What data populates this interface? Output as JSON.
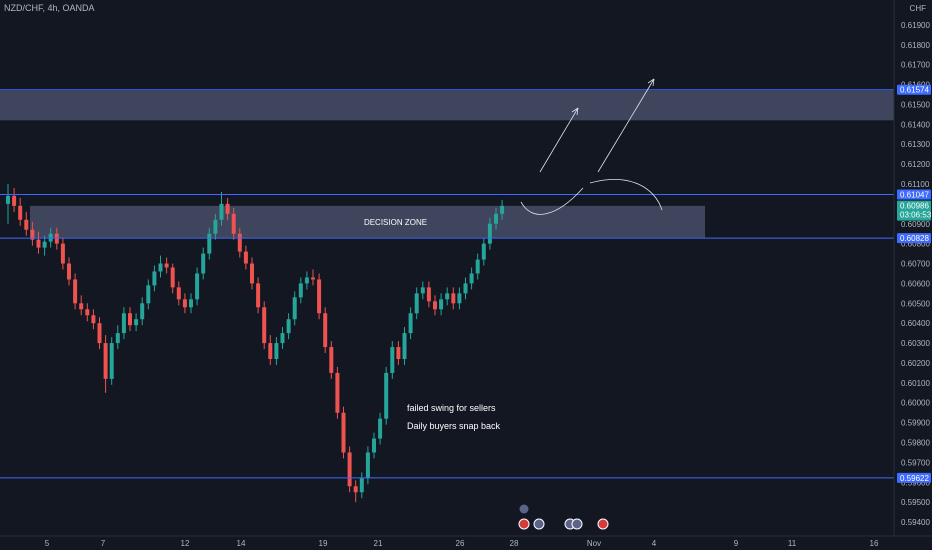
{
  "header": {
    "symbol": "NZD/CHF, 4h, OANDA",
    "currency": "CHF"
  },
  "colors": {
    "background": "#131722",
    "up": "#26a69a",
    "down": "#ef5350",
    "line": "#3d6bff",
    "zone": "#5d6786",
    "axis_label": "#b2b5be"
  },
  "chart_data": {
    "type": "candlestick",
    "ylim": [
      0.5933,
      0.6202
    ],
    "y_ticks": [
      "0.61900",
      "0.61800",
      "0.61700",
      "0.61600",
      "0.61500",
      "0.61400",
      "0.61300",
      "0.61200",
      "0.61100",
      "0.61000",
      "0.60900",
      "0.60800",
      "0.60700",
      "0.60600",
      "0.60500",
      "0.60400",
      "0.60300",
      "0.60200",
      "0.60100",
      "0.60000",
      "0.59900",
      "0.59800",
      "0.59700",
      "0.59600",
      "0.59500",
      "0.59400"
    ],
    "x_ticks": [
      "5",
      "7",
      "12",
      "14",
      "19",
      "21",
      "26",
      "28",
      "Nov",
      "4",
      "9",
      "11",
      "16"
    ],
    "levels": [
      {
        "label": "0.61574",
        "value": 0.61574
      },
      {
        "label": "0.61047",
        "value": 0.61047
      },
      {
        "label": "0.60828",
        "value": 0.60828
      },
      {
        "label": "0.59622",
        "value": 0.59622
      }
    ],
    "price_tag": {
      "value": "0.60986",
      "countdown": "03:06:53"
    },
    "zones": [
      {
        "low": 0.6142,
        "high": 0.6157,
        "label": ""
      },
      {
        "low": 0.6083,
        "high": 0.6099,
        "label": "DECISION ZONE"
      }
    ],
    "annotations": [
      "failed swing for sellers",
      "Daily buyers snap back"
    ],
    "candles": {
      "open": [
        0.61,
        0.6104,
        0.6099,
        0.6092,
        0.6087,
        0.6082,
        0.6078,
        0.6081,
        0.6085,
        0.608,
        0.607,
        0.6062,
        0.605,
        0.6047,
        0.6044,
        0.604,
        0.603,
        0.6012,
        0.603,
        0.6035,
        0.6045,
        0.6039,
        0.6042,
        0.605,
        0.6059,
        0.6066,
        0.607,
        0.6068,
        0.6058,
        0.6052,
        0.6048,
        0.6052,
        0.6065,
        0.6075,
        0.6085,
        0.6092,
        0.61,
        0.6095,
        0.6085,
        0.6076,
        0.607,
        0.606,
        0.6048,
        0.603,
        0.6022,
        0.603,
        0.6035,
        0.6042,
        0.6053,
        0.606,
        0.6063,
        0.6062,
        0.6045,
        0.6028,
        0.6015,
        0.5995,
        0.5975,
        0.5958,
        0.5955,
        0.5962,
        0.5975,
        0.5982,
        0.5992,
        0.6015,
        0.6028,
        0.6022,
        0.6035,
        0.6045,
        0.6055,
        0.6058,
        0.6051,
        0.6047,
        0.6052,
        0.6055,
        0.605,
        0.6055,
        0.606,
        0.6065,
        0.6072,
        0.608,
        0.609,
        0.6095
      ],
      "close": [
        0.6104,
        0.6099,
        0.6092,
        0.6087,
        0.6082,
        0.6078,
        0.6081,
        0.6085,
        0.608,
        0.607,
        0.6062,
        0.605,
        0.6047,
        0.6044,
        0.604,
        0.603,
        0.6012,
        0.603,
        0.6035,
        0.6045,
        0.6039,
        0.6042,
        0.605,
        0.6059,
        0.6066,
        0.607,
        0.6068,
        0.6058,
        0.6052,
        0.6048,
        0.6052,
        0.6065,
        0.6075,
        0.6085,
        0.6092,
        0.61,
        0.6095,
        0.6085,
        0.6076,
        0.607,
        0.606,
        0.6048,
        0.603,
        0.6022,
        0.603,
        0.6035,
        0.6042,
        0.6053,
        0.606,
        0.6063,
        0.6062,
        0.6045,
        0.6028,
        0.6015,
        0.5995,
        0.5975,
        0.5958,
        0.5955,
        0.5962,
        0.5975,
        0.5982,
        0.5992,
        0.6015,
        0.6028,
        0.6022,
        0.6035,
        0.6045,
        0.6055,
        0.6058,
        0.6051,
        0.6047,
        0.6052,
        0.6055,
        0.605,
        0.6055,
        0.606,
        0.6065,
        0.6072,
        0.608,
        0.609,
        0.6095,
        0.6099
      ],
      "high": [
        0.611,
        0.6108,
        0.6103,
        0.6096,
        0.6091,
        0.6086,
        0.6084,
        0.6088,
        0.6088,
        0.6083,
        0.6073,
        0.6065,
        0.6054,
        0.605,
        0.6047,
        0.6043,
        0.6034,
        0.6033,
        0.6039,
        0.6048,
        0.6048,
        0.6045,
        0.6053,
        0.6062,
        0.6069,
        0.6074,
        0.6073,
        0.607,
        0.6061,
        0.6055,
        0.6055,
        0.6068,
        0.6078,
        0.6088,
        0.6095,
        0.6106,
        0.6103,
        0.6098,
        0.6088,
        0.6079,
        0.6073,
        0.6063,
        0.6051,
        0.6034,
        0.6033,
        0.6038,
        0.6045,
        0.6056,
        0.6063,
        0.6066,
        0.6067,
        0.6065,
        0.6048,
        0.6031,
        0.6018,
        0.5998,
        0.5978,
        0.5961,
        0.5965,
        0.5978,
        0.5985,
        0.5995,
        0.6018,
        0.6031,
        0.6031,
        0.6038,
        0.6048,
        0.6058,
        0.6061,
        0.6061,
        0.6054,
        0.6055,
        0.6058,
        0.6058,
        0.6058,
        0.6063,
        0.6068,
        0.6075,
        0.6083,
        0.6093,
        0.6098,
        0.6102
      ],
      "low": [
        0.609,
        0.6096,
        0.6089,
        0.6084,
        0.6079,
        0.6075,
        0.6074,
        0.6078,
        0.6077,
        0.6067,
        0.6059,
        0.6047,
        0.6044,
        0.6041,
        0.6037,
        0.6027,
        0.6005,
        0.6009,
        0.6027,
        0.6032,
        0.6036,
        0.6036,
        0.6039,
        0.6047,
        0.6056,
        0.6063,
        0.6065,
        0.6055,
        0.6049,
        0.6045,
        0.6045,
        0.6049,
        0.6062,
        0.6072,
        0.6082,
        0.6089,
        0.6092,
        0.6082,
        0.6073,
        0.6067,
        0.6057,
        0.6045,
        0.6027,
        0.6019,
        0.6019,
        0.6027,
        0.6032,
        0.6039,
        0.605,
        0.6057,
        0.6059,
        0.6042,
        0.6025,
        0.6012,
        0.5992,
        0.5972,
        0.5955,
        0.595,
        0.5952,
        0.5959,
        0.5972,
        0.5979,
        0.5989,
        0.6012,
        0.6019,
        0.6019,
        0.6032,
        0.6042,
        0.6052,
        0.6048,
        0.6044,
        0.6044,
        0.6049,
        0.6047,
        0.6047,
        0.6052,
        0.6057,
        0.6062,
        0.6069,
        0.6077,
        0.6087,
        0.6092
      ]
    }
  }
}
